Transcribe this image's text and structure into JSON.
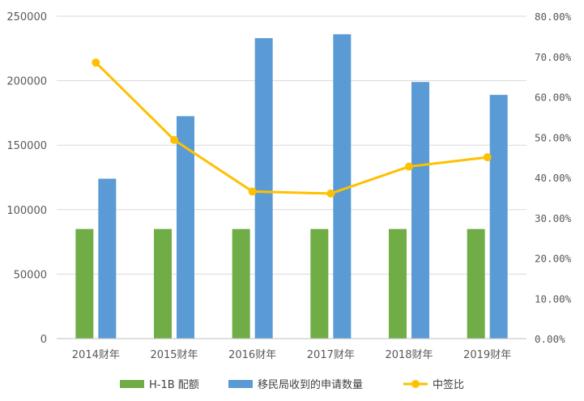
{
  "chart_data": {
    "type": "bar",
    "categories": [
      "2014财年",
      "2015财年",
      "2016财年",
      "2017财年",
      "2018财年",
      "2019财年"
    ],
    "series": [
      {
        "name": "H-1B 配额",
        "kind": "bar",
        "axis": "left",
        "color": "#70ad47",
        "values": [
          85000,
          85000,
          85000,
          85000,
          85000,
          85000
        ]
      },
      {
        "name": "移民局收到的申请数量",
        "kind": "bar",
        "axis": "left",
        "color": "#5b9bd5",
        "values": [
          124000,
          172500,
          233000,
          236000,
          199000,
          189000
        ]
      },
      {
        "name": "中签比",
        "kind": "line",
        "axis": "right",
        "color": "#ffc000",
        "values": [
          0.685,
          0.493,
          0.365,
          0.36,
          0.427,
          0.45
        ]
      }
    ],
    "y_left": {
      "min": 0,
      "max": 250000,
      "ticks": [
        "0",
        "50000",
        "100000",
        "150000",
        "200000",
        "250000"
      ]
    },
    "y_right": {
      "min": 0,
      "max": 0.8,
      "ticks": [
        "0.00%",
        "10.00%",
        "20.00%",
        "30.00%",
        "40.00%",
        "50.00%",
        "60.00%",
        "70.00%",
        "80.00%"
      ]
    },
    "grid": true,
    "legend": "bottom"
  }
}
